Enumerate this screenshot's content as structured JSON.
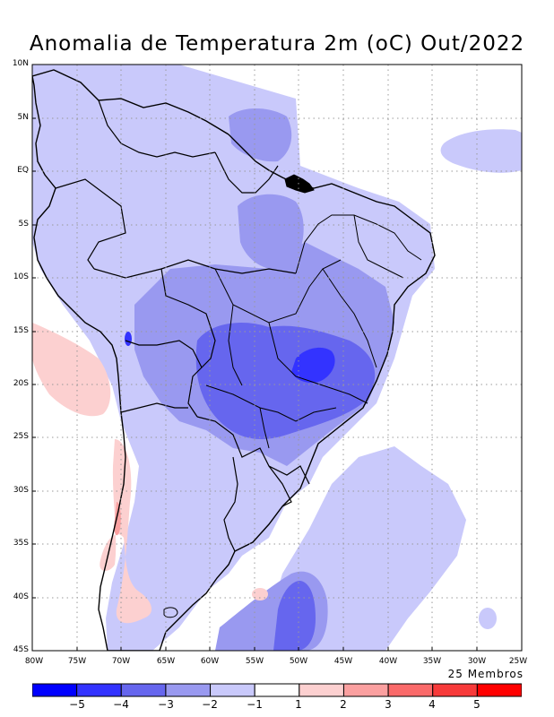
{
  "title": "Anomalia de Temperatura 2m (oC) Out/2022",
  "members_note": "25 Membros",
  "lat_labels": [
    "10N",
    "5N",
    "EQ",
    "5S",
    "10S",
    "15S",
    "20S",
    "25S",
    "30S",
    "35S",
    "40S",
    "45S"
  ],
  "lon_labels": [
    "80W",
    "75W",
    "70W",
    "65W",
    "60W",
    "55W",
    "50W",
    "45W",
    "40W",
    "35W",
    "30W",
    "25W"
  ],
  "colorbar": {
    "colors": [
      "#0000ff",
      "#3333ff",
      "#6666ee",
      "#9999f0",
      "#c9c9fb",
      "#ffffff",
      "#fcd0d0",
      "#fba0a0",
      "#fa6a6a",
      "#f73a3a",
      "#ff0000"
    ],
    "labels": [
      "-5",
      "-4",
      "-3",
      "-2",
      "-1",
      "1",
      "2",
      "3",
      "4",
      "5"
    ]
  },
  "palette": {
    "m1": "#c9c9fb",
    "m2": "#9999f0",
    "m3": "#6666ee",
    "m4": "#3333ff",
    "p1": "#fcd0d0",
    "p2": "#fba0a0"
  }
}
